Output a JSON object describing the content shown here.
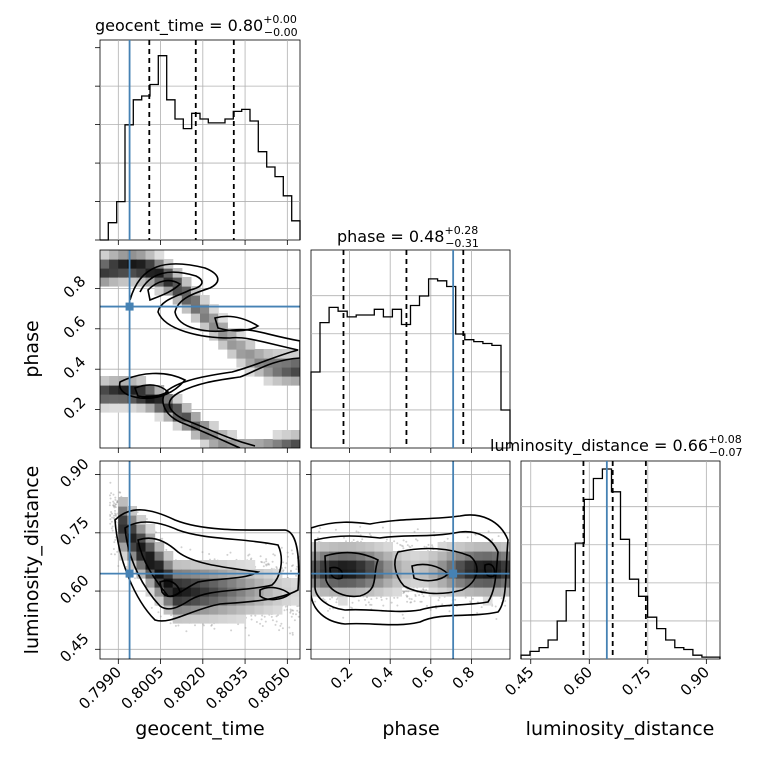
{
  "chart_data": {
    "type": "corner",
    "parameters": [
      "geocent_time",
      "phase",
      "luminosity_distance"
    ],
    "titles": [
      {
        "label": "geocent_time = 0.80",
        "sup": "+0.00",
        "sub": "−0.00"
      },
      {
        "label": "phase = 0.48",
        "sup": "+0.28",
        "sub": "−0.31"
      },
      {
        "label": "luminosity_distance = 0.66",
        "sup": "+0.08",
        "sub": "−0.07"
      }
    ],
    "axis_labels": [
      "geocent_time",
      "phase",
      "luminosity_distance"
    ],
    "ranges": [
      [
        0.79835,
        0.80545
      ],
      [
        0.01,
        0.99
      ],
      [
        0.425,
        0.935
      ]
    ],
    "ticks": [
      {
        "values": [
          0.799,
          0.8005,
          0.802,
          0.8035,
          0.805
        ],
        "labels": [
          "0.7990",
          "0.8005",
          "0.8020",
          "0.8035",
          "0.8050"
        ]
      },
      {
        "values": [
          0.2,
          0.4,
          0.6,
          0.8
        ],
        "labels": [
          "0.2",
          "0.4",
          "0.6",
          "0.8"
        ]
      },
      {
        "values": [
          0.45,
          0.6,
          0.75,
          0.9
        ],
        "labels": [
          "0.45",
          "0.60",
          "0.75",
          "0.90"
        ]
      }
    ],
    "truths": [
      0.7994,
      0.71,
      0.645
    ],
    "truth_color": "#4682b4",
    "quantiles": [
      [
        0.8001,
        0.80175,
        0.8031
      ],
      [
        0.17,
        0.48,
        0.76
      ],
      [
        0.585,
        0.66,
        0.745
      ]
    ],
    "histograms": [
      [
        0.0,
        0.09,
        0.2,
        0.6,
        0.73,
        0.75,
        0.81,
        0.96,
        0.73,
        0.63,
        0.58,
        0.66,
        0.63,
        0.61,
        0.61,
        0.63,
        0.67,
        0.68,
        0.62,
        0.46,
        0.38,
        0.33,
        0.23,
        0.1
      ],
      [
        0.4,
        0.66,
        0.74,
        0.72,
        0.69,
        0.7,
        0.7,
        0.73,
        0.69,
        0.73,
        0.65,
        0.75,
        0.8,
        0.89,
        0.88,
        0.85,
        0.6,
        0.57,
        0.56,
        0.55,
        0.54,
        0.2
      ],
      [
        0.02,
        0.04,
        0.06,
        0.1,
        0.2,
        0.36,
        0.61,
        0.84,
        0.95,
        1.0,
        0.88,
        0.63,
        0.42,
        0.33,
        0.22,
        0.16,
        0.1,
        0.06,
        0.05,
        0.02,
        0.01,
        0.01
      ]
    ],
    "contour_levels": [
      "phase_vs_geocent_time: bimodal S-shaped band (phase ~0.85 at 0.7990 sweeping to ~0.5 near 0.8050, second branch from ~0.3 to ~0.02)",
      "luminosity_distance_vs_geocent_time: band decreasing from ~0.78 to ~0.58",
      "luminosity_distance_vs_phase: flat band around 0.62-0.70 across phase"
    ],
    "grid": true,
    "colors": {
      "hist": "#000000",
      "truth": "#4682b4",
      "scatter": "#999999",
      "grid": "#b0b0b0"
    }
  }
}
